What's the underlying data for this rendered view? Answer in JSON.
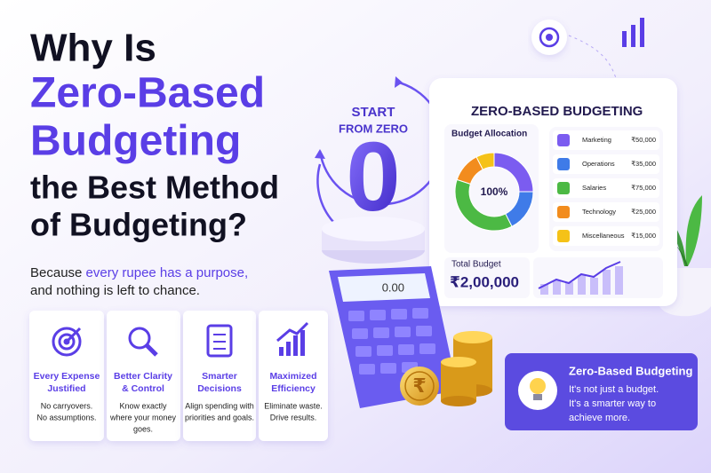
{
  "title": {
    "lines": [
      "Why Is",
      "Zero-Based",
      "Budgeting",
      "the Best Method",
      "of Budgeting?"
    ]
  },
  "subtitle": {
    "line1": {
      "lead": "Because",
      "highlight": "every rupee has a purpose,"
    },
    "line2": "and nothing is left to chance."
  },
  "cards": [
    {
      "title": [
        "Every Expense",
        "Justified"
      ],
      "text": [
        "No carryovers.",
        "No assumptions."
      ]
    },
    {
      "title": [
        "Better Clarity",
        "& Control"
      ],
      "text": [
        "Know exactly",
        "where your money",
        "goes."
      ]
    },
    {
      "title": [
        "Smarter",
        "Decisions"
      ],
      "text": [
        "Align spending with",
        "priorities and goals."
      ]
    },
    {
      "title": [
        "Maximized",
        "Efficiency"
      ],
      "text": [
        "Eliminate waste.",
        "Drive results."
      ]
    }
  ],
  "center": {
    "label": [
      "START",
      "FROM ZERO"
    ],
    "digit": "0"
  },
  "calculator": {
    "display": "0.00"
  },
  "coin_symbol": "₹",
  "dashboard": {
    "title": "ZERO-BASED BUDGETING",
    "allocation": {
      "title": "Budget Allocation",
      "center_label": "100%",
      "items": [
        {
          "name": "Marketing",
          "amount": {
            "value": 50000,
            "label": "₹50,000"
          },
          "color": "#7b5cf0"
        },
        {
          "name": "Operations",
          "amount": {
            "value": 35000,
            "label": "₹35,000"
          },
          "color": "#3f7be8"
        },
        {
          "name": "Salaries",
          "amount": {
            "value": 75000,
            "label": "₹75,000"
          },
          "color": "#4cb944"
        },
        {
          "name": "Technology",
          "amount": {
            "value": 25000,
            "label": "₹25,000"
          },
          "color": "#f28c1e"
        },
        {
          "name": "Miscellaneous",
          "amount": {
            "value": 15000,
            "label": "₹15,000"
          },
          "color": "#f5c218"
        }
      ]
    },
    "total": {
      "title": "Total Budget",
      "amount": "₹2,00,000"
    }
  },
  "callout": {
    "title": "Zero-Based Budgeting",
    "lines": [
      "It's not just a budget.",
      "It's a smarter way to",
      "achieve more."
    ]
  }
}
